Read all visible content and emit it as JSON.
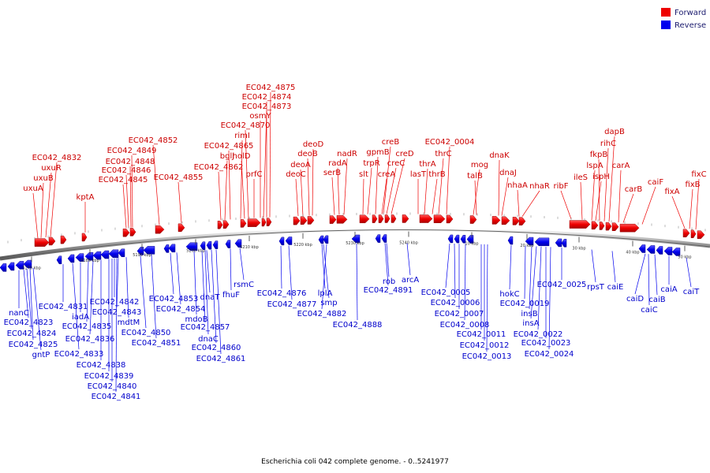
{
  "legend": [
    {
      "label": "Forward",
      "color": "#ee0000"
    },
    {
      "label": "Reverse",
      "color": "#0000ee"
    }
  ],
  "caption": "Escherichia coli 042 complete genome. - 0..5241977",
  "colors": {
    "forward": "#ee0000",
    "reverse": "#0000ee",
    "backbone": "#999999"
  },
  "ticks": [
    "5170 kbp",
    "5180 kbp",
    "5190 kbp",
    "5200 kbp",
    "5210 kbp",
    "5220 kbp",
    "5230 kbp",
    "5240 kbp",
    "10 kbp",
    "20 kbp",
    "30 kbp",
    "40 kbp",
    "50 kbp"
  ],
  "forward_genes": [
    "uxuA",
    "uxuB",
    "uxuR",
    "EC042_4832",
    "kptA",
    "EC042_4845",
    "EC042_4846",
    "EC042_4848",
    "EC042_4849",
    "EC042_4852",
    "EC042_4855",
    "EC042_4862",
    "bglJ",
    "EC042_4865",
    "rimI",
    "holD",
    "EC042_4870",
    "prfC",
    "osmY",
    "EC042_4873",
    "EC042_4874",
    "EC042_4875",
    "deoC",
    "deoA",
    "deoB",
    "deoD",
    "serB",
    "radA",
    "nadR",
    "slt",
    "trpR",
    "gpmB",
    "creA",
    "creB",
    "creC",
    "creD",
    "lasT",
    "thrA",
    "thrB",
    "thrC",
    "EC042_0004",
    "talB",
    "mog",
    "dnaJ",
    "dnaK",
    "nhaA",
    "nhaR",
    "ribF",
    "ileS",
    "lspA",
    "ispH",
    "fkpB",
    "rihC",
    "dapB",
    "carA",
    "carB",
    "caiF",
    "fixA",
    "fixB",
    "fixC"
  ],
  "reverse_genes": [
    "nanC",
    "EC042_4823",
    "EC042_4824",
    "EC042_4825",
    "gntP",
    "EC042_4831",
    "iadA",
    "EC042_4833",
    "EC042_4835",
    "EC042_4836",
    "EC042_4838",
    "EC042_4839",
    "EC042_4840",
    "EC042_4841",
    "EC042_4842",
    "EC042_4843",
    "mdtM",
    "EC042_4850",
    "EC042_4851",
    "EC042_4853",
    "EC042_4854",
    "mdoB",
    "dnaT",
    "EC042_4857",
    "dnaC",
    "EC042_4860",
    "EC042_4861",
    "fhuF",
    "rsmC",
    "EC042_4876",
    "EC042_4877",
    "lplA",
    "smp",
    "EC042_4882",
    "EC042_4888",
    "EC042_4891",
    "rob",
    "arcA",
    "EC042_0005",
    "EC042_0006",
    "EC042_0007",
    "EC042_0008",
    "EC042_0011",
    "EC042_0012",
    "EC042_0013",
    "hokC",
    "EC042_0019",
    "insB",
    "insA",
    "EC042_0022",
    "EC042_0023",
    "EC042_0024",
    "EC042_0025",
    "rpsT",
    "caiE",
    "caiD",
    "caiC",
    "caiB",
    "caiA",
    "caiT"
  ]
}
